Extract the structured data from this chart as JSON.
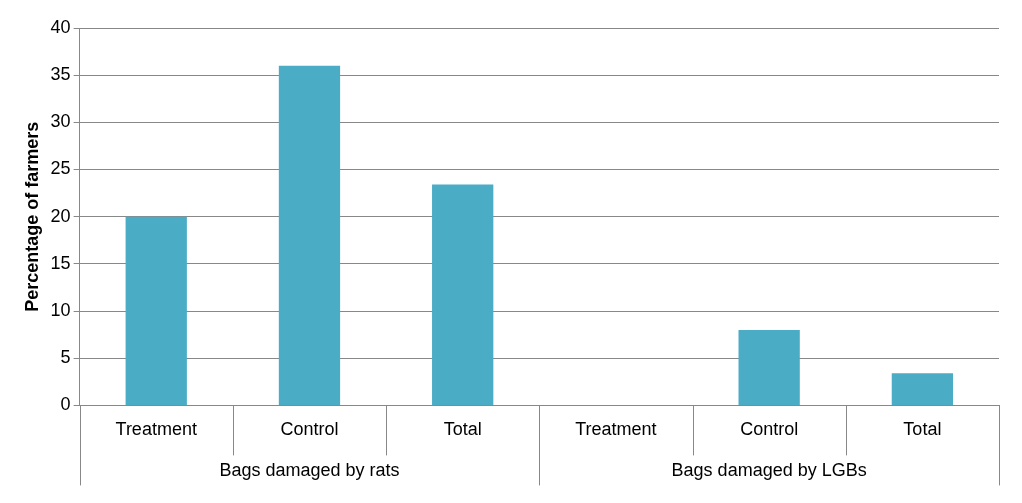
{
  "chart_data": {
    "type": "bar",
    "ylabel": "Percentage of farmers",
    "categories": [
      "Treatment",
      "Control",
      "Total",
      "Treatment",
      "Control",
      "Total"
    ],
    "values": [
      20,
      36,
      23.4,
      0,
      8,
      3.4
    ],
    "color": "#4bacc6",
    "ylim": [
      0,
      40
    ],
    "yticks": [
      0,
      5,
      10,
      15,
      20,
      25,
      30,
      35,
      40
    ],
    "grid": "y",
    "annotations": [
      "Bags damaged by rats",
      "Bags damaged by LGBs"
    ]
  }
}
